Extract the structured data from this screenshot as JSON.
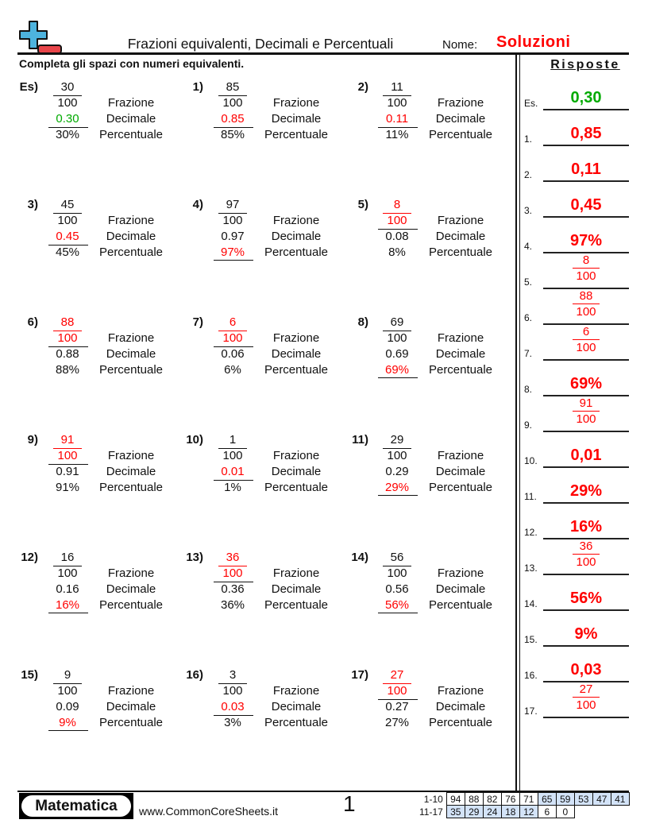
{
  "header": {
    "title": "Frazioni equivalenti, Decimali e Percentuali",
    "name_label": "Nome:",
    "name_value": "Soluzioni",
    "instructions": "Completa gli spazi con numeri equivalenti."
  },
  "colors": {
    "answer": "#ff0000",
    "example": "#00aa00",
    "logo_blue": "#4db3de",
    "logo_red": "#e8454a",
    "score_highlight": "#d3e3f8"
  },
  "words": {
    "fraction": "Frazione",
    "decimal": "Decimale",
    "percent": "Percentuale"
  },
  "problems": [
    {
      "label": "Es)",
      "num": "30",
      "den": "100",
      "dec": "0.30",
      "pct": "30%",
      "blank": "decimal",
      "example": true
    },
    {
      "label": "1)",
      "num": "85",
      "den": "100",
      "dec": "0.85",
      "pct": "85%",
      "blank": "decimal"
    },
    {
      "label": "2)",
      "num": "11",
      "den": "100",
      "dec": "0.11",
      "pct": "11%",
      "blank": "decimal"
    },
    {
      "label": "3)",
      "num": "45",
      "den": "100",
      "dec": "0.45",
      "pct": "45%",
      "blank": "decimal"
    },
    {
      "label": "4)",
      "num": "97",
      "den": "100",
      "dec": "0.97",
      "pct": "97%",
      "blank": "percent"
    },
    {
      "label": "5)",
      "num": "8",
      "den": "100",
      "dec": "0.08",
      "pct": "8%",
      "blank": "fraction"
    },
    {
      "label": "6)",
      "num": "88",
      "den": "100",
      "dec": "0.88",
      "pct": "88%",
      "blank": "fraction"
    },
    {
      "label": "7)",
      "num": "6",
      "den": "100",
      "dec": "0.06",
      "pct": "6%",
      "blank": "fraction"
    },
    {
      "label": "8)",
      "num": "69",
      "den": "100",
      "dec": "0.69",
      "pct": "69%",
      "blank": "percent"
    },
    {
      "label": "9)",
      "num": "91",
      "den": "100",
      "dec": "0.91",
      "pct": "91%",
      "blank": "fraction"
    },
    {
      "label": "10)",
      "num": "1",
      "den": "100",
      "dec": "0.01",
      "pct": "1%",
      "blank": "decimal"
    },
    {
      "label": "11)",
      "num": "29",
      "den": "100",
      "dec": "0.29",
      "pct": "29%",
      "blank": "percent"
    },
    {
      "label": "12)",
      "num": "16",
      "den": "100",
      "dec": "0.16",
      "pct": "16%",
      "blank": "percent"
    },
    {
      "label": "13)",
      "num": "36",
      "den": "100",
      "dec": "0.36",
      "pct": "36%",
      "blank": "fraction"
    },
    {
      "label": "14)",
      "num": "56",
      "den": "100",
      "dec": "0.56",
      "pct": "56%",
      "blank": "percent"
    },
    {
      "label": "15)",
      "num": "9",
      "den": "100",
      "dec": "0.09",
      "pct": "9%",
      "blank": "percent"
    },
    {
      "label": "16)",
      "num": "3",
      "den": "100",
      "dec": "0.03",
      "pct": "3%",
      "blank": "decimal"
    },
    {
      "label": "17)",
      "num": "27",
      "den": "100",
      "dec": "0.27",
      "pct": "27%",
      "blank": "fraction"
    }
  ],
  "answers": {
    "title": "Risposte",
    "items": [
      {
        "label": "Es.",
        "value": "0,30",
        "example": true
      },
      {
        "label": "1.",
        "value": "0,85"
      },
      {
        "label": "2.",
        "value": "0,11"
      },
      {
        "label": "3.",
        "value": "0,45"
      },
      {
        "label": "4.",
        "value": "97%"
      },
      {
        "label": "5.",
        "num": "8",
        "den": "100"
      },
      {
        "label": "6.",
        "num": "88",
        "den": "100"
      },
      {
        "label": "7.",
        "num": "6",
        "den": "100"
      },
      {
        "label": "8.",
        "value": "69%"
      },
      {
        "label": "9.",
        "num": "91",
        "den": "100"
      },
      {
        "label": "10.",
        "value": "0,01"
      },
      {
        "label": "11.",
        "value": "29%"
      },
      {
        "label": "12.",
        "value": "16%"
      },
      {
        "label": "13.",
        "num": "36",
        "den": "100"
      },
      {
        "label": "14.",
        "value": "56%"
      },
      {
        "label": "15.",
        "value": "9%"
      },
      {
        "label": "16.",
        "value": "0,03"
      },
      {
        "label": "17.",
        "num": "27",
        "den": "100"
      }
    ]
  },
  "footer": {
    "brand": "Matematica",
    "website": "www.CommonCoreSheets.it",
    "page": "1",
    "score_rows": [
      {
        "label": "1-10",
        "cells": [
          "94",
          "88",
          "82",
          "76",
          "71",
          "65",
          "59",
          "53",
          "47",
          "41"
        ],
        "highlight_from": 5
      },
      {
        "label": "11-17",
        "cells": [
          "35",
          "29",
          "24",
          "18",
          "12",
          "6",
          "0"
        ],
        "highlight_until": 5
      }
    ]
  }
}
